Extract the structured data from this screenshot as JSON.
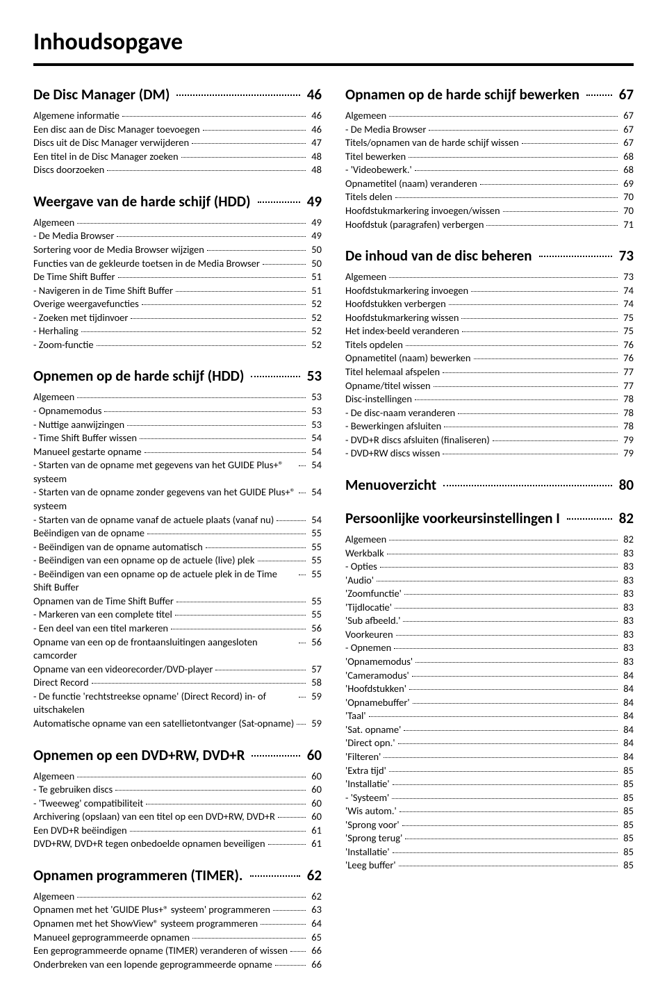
{
  "page_title": "Inhoudsopgave",
  "left": [
    {
      "title": "De Disc Manager (DM)",
      "page": "46",
      "items": [
        {
          "label": "Algemene informatie",
          "page": "46"
        },
        {
          "label": "Een disc aan de Disc Manager toevoegen",
          "page": "46"
        },
        {
          "label": "Discs uit de Disc Manager verwijderen",
          "page": "47"
        },
        {
          "label": "Een titel in de Disc Manager zoeken",
          "page": "48"
        },
        {
          "label": "Discs doorzoeken",
          "page": "48"
        }
      ]
    },
    {
      "title": "Weergave van de harde schijf (HDD)",
      "page": "49",
      "items": [
        {
          "label": "Algemeen",
          "page": "49"
        },
        {
          "label": "- De Media Browser",
          "page": "49"
        },
        {
          "label": "Sortering voor de Media Browser wijzigen",
          "page": "50"
        },
        {
          "label": "Functies van de gekleurde toetsen in de Media Browser",
          "page": "50"
        },
        {
          "label": "De Time Shift Buffer",
          "page": "51"
        },
        {
          "label": "- Navigeren in de Time Shift Buffer",
          "page": "51"
        },
        {
          "label": "Overige weergavefuncties",
          "page": "52"
        },
        {
          "label": "- Zoeken met tijdinvoer",
          "page": "52"
        },
        {
          "label": "- Herhaling",
          "page": "52"
        },
        {
          "label": "- Zoom-functie",
          "page": "52"
        }
      ]
    },
    {
      "title": "Opnemen op de harde schijf (HDD)",
      "page": "53",
      "items": [
        {
          "label": "Algemeen",
          "page": "53"
        },
        {
          "label": "- Opnamemodus",
          "page": "53"
        },
        {
          "label": "- Nuttige aanwijzingen",
          "page": "53"
        },
        {
          "label": "- Time Shift Buffer wissen",
          "page": "54"
        },
        {
          "label": "Manueel gestarte opname",
          "page": "54"
        },
        {
          "label": "- Starten van de opname met gegevens van het GUIDE Plus+® systeem",
          "page": "54"
        },
        {
          "label": "- Starten van de opname zonder gegevens van het GUIDE Plus+® systeem",
          "page": "54"
        },
        {
          "label": "- Starten van de opname vanaf de actuele plaats (vanaf nu)",
          "page": "54"
        },
        {
          "label": "Beëindigen van de opname",
          "page": "55"
        },
        {
          "label": "- Beëindigen van de opname automatisch",
          "page": "55"
        },
        {
          "label": "- Beëindigen van een opname op de actuele (live) plek",
          "page": "55"
        },
        {
          "label": "- Beëindigen van een opname op de actuele plek in de Time Shift Buffer",
          "page": "55"
        },
        {
          "label": "Opnamen van de Time Shift Buffer",
          "page": "55"
        },
        {
          "label": "- Markeren van een complete titel",
          "page": "55"
        },
        {
          "label": "- Een deel van een titel markeren",
          "page": "56"
        },
        {
          "label": "Opname van een op de frontaansluitingen aangesloten camcorder",
          "page": "56"
        },
        {
          "label": "Opname van een videorecorder/DVD-player",
          "page": "57"
        },
        {
          "label": "Direct Record",
          "page": "58"
        },
        {
          "label": "- De functie 'rechtstreekse opname' (Direct Record) in- of uitschakelen",
          "page": "59"
        },
        {
          "label": "Automatische opname van een satellietontvanger (Sat-opname)",
          "page": "59"
        }
      ]
    },
    {
      "title": "Opnemen op een DVD+RW, DVD+R",
      "page": "60",
      "items": [
        {
          "label": "Algemeen",
          "page": "60"
        },
        {
          "label": "- Te gebruiken discs",
          "page": "60"
        },
        {
          "label": "- 'Tweeweg' compatibiliteit",
          "page": "60"
        },
        {
          "label": "Archivering (opslaan) van een titel op een DVD+RW, DVD+R",
          "page": "60"
        },
        {
          "label": "Een DVD+R beëindigen",
          "page": "61"
        },
        {
          "label": "DVD+RW, DVD+R tegen onbedoelde opnamen beveiligen",
          "page": "61"
        }
      ]
    },
    {
      "title": "Opnamen programmeren (TIMER)",
      "title_suffix": ".",
      "page": "62",
      "items": [
        {
          "label": "Algemeen",
          "page": "62"
        },
        {
          "label": "Opnamen met het 'GUIDE Plus+® systeem' programmeren",
          "page": "63"
        },
        {
          "label": "Opnamen met het ShowView® systeem programmeren",
          "page": "64"
        },
        {
          "label": "Manueel geprogrammeerde opnamen",
          "page": "65"
        },
        {
          "label": "Een geprogrammeerde opname (TIMER) veranderen of wissen",
          "page": "66"
        },
        {
          "label": "Onderbreken van een lopende geprogrammeerde opname",
          "page": "66"
        }
      ]
    }
  ],
  "right": [
    {
      "title": "Opnamen op de harde schijf bewerken",
      "page": "67",
      "items": [
        {
          "label": "Algemeen",
          "page": "67"
        },
        {
          "label": "- De Media Browser",
          "page": "67"
        },
        {
          "label": "Titels/opnamen van de harde schijf wissen",
          "page": "67"
        },
        {
          "label": "Titel bewerken",
          "page": "68"
        },
        {
          "label": "- 'Videobewerk.'",
          "page": "68"
        },
        {
          "label": "Opnametitel (naam) veranderen",
          "page": "69"
        },
        {
          "label": "Titels delen",
          "page": "70"
        },
        {
          "label": "Hoofdstukmarkering invoegen/wissen",
          "page": "70"
        },
        {
          "label": "Hoofdstuk (paragrafen) verbergen",
          "page": "71"
        }
      ]
    },
    {
      "title": "De inhoud van de disc beheren",
      "page": "73",
      "items": [
        {
          "label": "Algemeen",
          "page": "73"
        },
        {
          "label": "Hoofdstukmarkering invoegen",
          "page": "74"
        },
        {
          "label": "Hoofdstukken verbergen",
          "page": "74"
        },
        {
          "label": "Hoofdstukmarkering wissen",
          "page": "75"
        },
        {
          "label": "Het index-beeld veranderen",
          "page": "75"
        },
        {
          "label": "Titels opdelen",
          "page": "76"
        },
        {
          "label": "Opnametitel (naam) bewerken",
          "page": "76"
        },
        {
          "label": "Titel helemaal afspelen",
          "page": "77"
        },
        {
          "label": "Opname/titel wissen",
          "page": "77"
        },
        {
          "label": "Disc-instellingen",
          "page": "78"
        },
        {
          "label": "- De disc-naam veranderen",
          "page": "78"
        },
        {
          "label": "- Bewerkingen afsluiten",
          "page": "78"
        },
        {
          "label": "- DVD+R discs afsluiten (finaliseren)",
          "page": "79"
        },
        {
          "label": "- DVD+RW discs wissen",
          "page": "79"
        }
      ]
    },
    {
      "title": "Menuoverzicht",
      "page": "80",
      "items": []
    },
    {
      "title": "Persoonlijke voorkeursinstellingen I",
      "page": "82",
      "items": [
        {
          "label": "Algemeen",
          "page": "82"
        },
        {
          "label": "Werkbalk",
          "page": "83"
        },
        {
          "label": "- Opties",
          "page": "83"
        },
        {
          "label": "'Audio'",
          "page": "83"
        },
        {
          "label": "'Zoomfunctie'",
          "page": "83"
        },
        {
          "label": "'Tijdlocatie'",
          "page": "83"
        },
        {
          "label": "'Sub afbeeld.'",
          "page": "83"
        },
        {
          "label": "Voorkeuren",
          "page": "83"
        },
        {
          "label": "- Opnemen",
          "page": "83"
        },
        {
          "label": "'Opnamemodus'",
          "page": "83"
        },
        {
          "label": "'Cameramodus'",
          "page": "84"
        },
        {
          "label": "'Hoofdstukken'",
          "page": "84"
        },
        {
          "label": "'Opnamebuffer'",
          "page": "84"
        },
        {
          "label": "'Taal'",
          "page": "84"
        },
        {
          "label": "'Sat. opname'",
          "page": "84"
        },
        {
          "label": "'Direct opn.'",
          "page": "84"
        },
        {
          "label": "'Filteren'",
          "page": "84"
        },
        {
          "label": "'Extra tijd'",
          "page": "85"
        },
        {
          "label": "'Installatie'",
          "page": "85"
        },
        {
          "label": "- 'Systeem'",
          "page": "85"
        },
        {
          "label": "'Wis autom.'",
          "page": "85"
        },
        {
          "label": "'Sprong voor'",
          "page": "85"
        },
        {
          "label": "'Sprong terug'",
          "page": "85"
        },
        {
          "label": "'Installatie'",
          "page": "85"
        },
        {
          "label": "'Leeg buffer'",
          "page": "85"
        }
      ]
    }
  ]
}
